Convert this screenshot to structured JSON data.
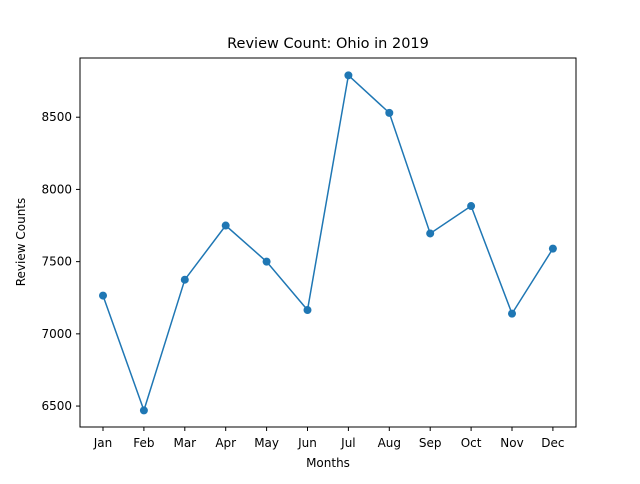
{
  "chart_data": {
    "type": "line",
    "title": "Review Count: Ohio in 2019",
    "xlabel": "Months",
    "ylabel": "Review Counts",
    "categories": [
      "Jan",
      "Feb",
      "Mar",
      "Apr",
      "May",
      "Jun",
      "Jul",
      "Aug",
      "Sep",
      "Oct",
      "Nov",
      "Dec"
    ],
    "series": [
      {
        "values": [
          7265,
          6470,
          7375,
          7750,
          7500,
          7165,
          8790,
          8530,
          7695,
          7885,
          7140,
          7590
        ],
        "color": "#1f77b4"
      }
    ],
    "ylim": [
      6355,
      8910
    ],
    "yticks": [
      6500,
      7000,
      7500,
      8000,
      8500
    ],
    "grid": false,
    "marker": "circle"
  }
}
